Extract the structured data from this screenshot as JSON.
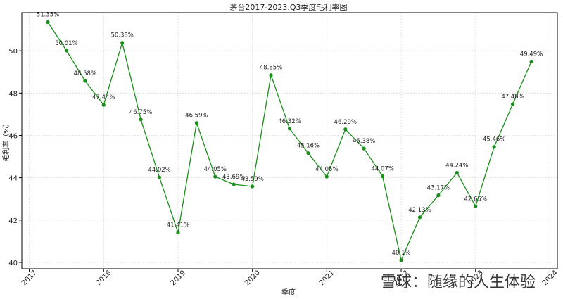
{
  "chart_data": {
    "type": "line",
    "title": "茅台2017-2023.Q3季度毛利率图",
    "xlabel": "季度",
    "ylabel": "毛利率（%）",
    "xlim": [
      2016.9,
      2024.1
    ],
    "ylim": [
      39.7,
      51.8
    ],
    "x_ticks": [
      {
        "value": 2017,
        "label": "2017"
      },
      {
        "value": 2018,
        "label": "2018"
      },
      {
        "value": 2019,
        "label": "2019"
      },
      {
        "value": 2020,
        "label": "2020"
      },
      {
        "value": 2021,
        "label": "2021"
      },
      {
        "value": 2022,
        "label": "2022"
      },
      {
        "value": 2023,
        "label": "2023"
      },
      {
        "value": 2024,
        "label": "2024"
      }
    ],
    "y_ticks": [
      40,
      42,
      44,
      46,
      48,
      50
    ],
    "grid": true,
    "line_color": "#1a8f1a",
    "series": [
      {
        "name": "",
        "points": [
          {
            "x": 2017.25,
            "y": 51.35,
            "label": "51.35%"
          },
          {
            "x": 2017.5,
            "y": 50.01,
            "label": "50.01%"
          },
          {
            "x": 2017.75,
            "y": 48.58,
            "label": "48.58%"
          },
          {
            "x": 2018.0,
            "y": 47.44,
            "label": "47.44%"
          },
          {
            "x": 2018.25,
            "y": 50.38,
            "label": "50.38%"
          },
          {
            "x": 2018.5,
            "y": 46.75,
            "label": "46.75%"
          },
          {
            "x": 2018.75,
            "y": 44.02,
            "label": "44.02%"
          },
          {
            "x": 2019.0,
            "y": 41.41,
            "label": "41.41%"
          },
          {
            "x": 2019.25,
            "y": 46.59,
            "label": "46.59%"
          },
          {
            "x": 2019.5,
            "y": 44.05,
            "label": "44.05%"
          },
          {
            "x": 2019.75,
            "y": 43.69,
            "label": "43.69%"
          },
          {
            "x": 2020.0,
            "y": 43.59,
            "label": "43.59%"
          },
          {
            "x": 2020.25,
            "y": 48.85,
            "label": "48.85%"
          },
          {
            "x": 2020.5,
            "y": 46.32,
            "label": "46.32%"
          },
          {
            "x": 2020.75,
            "y": 45.16,
            "label": "45.16%"
          },
          {
            "x": 2021.0,
            "y": 44.05,
            "label": "44.05%"
          },
          {
            "x": 2021.25,
            "y": 46.29,
            "label": "46.29%"
          },
          {
            "x": 2021.5,
            "y": 45.38,
            "label": "45.38%"
          },
          {
            "x": 2021.75,
            "y": 44.07,
            "label": "44.07%"
          },
          {
            "x": 2022.0,
            "y": 40.1,
            "label": "40.1%"
          },
          {
            "x": 2022.25,
            "y": 42.13,
            "label": "42.13%"
          },
          {
            "x": 2022.5,
            "y": 43.17,
            "label": "43.17%"
          },
          {
            "x": 2022.75,
            "y": 44.24,
            "label": "44.24%"
          },
          {
            "x": 2023.0,
            "y": 42.65,
            "label": "42.65%"
          },
          {
            "x": 2023.25,
            "y": 45.46,
            "label": "45.46%"
          },
          {
            "x": 2023.5,
            "y": 47.48,
            "label": "47.48%"
          },
          {
            "x": 2023.75,
            "y": 49.49,
            "label": "49.49%"
          }
        ]
      }
    ]
  },
  "watermark": {
    "text": "雪球：随缘的人生体验",
    "icon": "snowball-logo-icon"
  }
}
